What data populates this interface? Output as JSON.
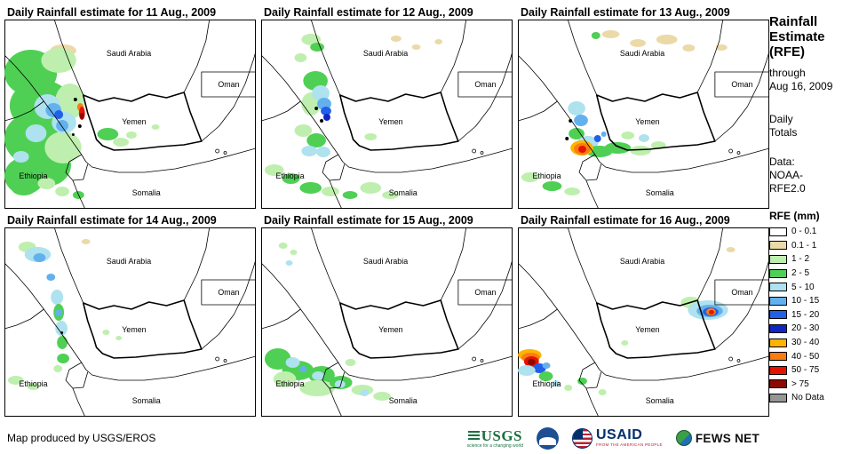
{
  "map_labels": {
    "saudi": "Saudi Arabia",
    "oman": "Oman",
    "yemen": "Yemen",
    "ethiopia": "Ethiopia",
    "somalia": "Somalia"
  },
  "palette": {
    "t": "#EBD9A8",
    "g1": "#BFEFAE",
    "g2": "#4FD054",
    "c": "#AEE2EF",
    "b1": "#63B0EF",
    "b2": "#2160E8",
    "b3": "#1026C0",
    "y": "#FFB400",
    "o": "#F97D10",
    "r": "#E51400",
    "dr": "#8C0A00",
    "k": "#000000"
  },
  "panels": [
    {
      "title": "Daily Rainfall estimate for 11 Aug., 2009",
      "blobs": [
        [
          52,
          28,
          30,
          14,
          "t"
        ],
        [
          0,
          34,
          60,
          52,
          "g2"
        ],
        [
          6,
          68,
          72,
          58,
          "g2"
        ],
        [
          0,
          105,
          62,
          58,
          "g2"
        ],
        [
          18,
          140,
          58,
          48,
          "g2"
        ],
        [
          0,
          155,
          46,
          42,
          "g2"
        ],
        [
          42,
          32,
          40,
          28,
          "g1"
        ],
        [
          58,
          72,
          34,
          40,
          "g1"
        ],
        [
          46,
          126,
          42,
          36,
          "g1"
        ],
        [
          8,
          182,
          28,
          16,
          "g2"
        ],
        [
          38,
          178,
          20,
          13,
          "g1"
        ],
        [
          58,
          188,
          16,
          11,
          "g1"
        ],
        [
          78,
          193,
          13,
          9,
          "g2"
        ],
        [
          34,
          84,
          30,
          28,
          "c"
        ],
        [
          54,
          104,
          28,
          24,
          "c"
        ],
        [
          24,
          118,
          24,
          20,
          "c"
        ],
        [
          10,
          148,
          18,
          13,
          "c"
        ],
        [
          47,
          94,
          18,
          16,
          "b1"
        ],
        [
          59,
          113,
          14,
          13,
          "b1"
        ],
        [
          57,
          102,
          10,
          10,
          "b2"
        ],
        [
          83,
          94,
          7,
          9,
          "o"
        ],
        [
          85,
          98,
          7,
          15,
          "r"
        ],
        [
          86,
          105,
          5,
          7,
          "dr"
        ],
        [
          79,
          88,
          4,
          4,
          "k"
        ],
        [
          84,
          118,
          4,
          4,
          "k"
        ],
        [
          77,
          128,
          3,
          3,
          "k"
        ],
        [
          106,
          122,
          24,
          14,
          "g2"
        ],
        [
          124,
          133,
          18,
          10,
          "g1"
        ],
        [
          139,
          126,
          12,
          8,
          "g1"
        ],
        [
          168,
          118,
          9,
          6,
          "g1"
        ]
      ]
    },
    {
      "title": "Daily Rainfall estimate for 12 Aug., 2009",
      "blobs": [
        [
          46,
          16,
          22,
          13,
          "g1"
        ],
        [
          56,
          26,
          16,
          10,
          "g2"
        ],
        [
          38,
          38,
          14,
          10,
          "g1"
        ],
        [
          148,
          18,
          12,
          7,
          "t"
        ],
        [
          172,
          28,
          10,
          6,
          "t"
        ],
        [
          198,
          22,
          9,
          6,
          "t"
        ],
        [
          48,
          58,
          28,
          22,
          "g2"
        ],
        [
          46,
          82,
          22,
          26,
          "g1"
        ],
        [
          58,
          74,
          20,
          18,
          "c"
        ],
        [
          64,
          88,
          16,
          14,
          "b1"
        ],
        [
          68,
          98,
          12,
          10,
          "b2"
        ],
        [
          71,
          106,
          8,
          8,
          "b3"
        ],
        [
          61,
          98,
          4,
          4,
          "k"
        ],
        [
          67,
          112,
          4,
          4,
          "k"
        ],
        [
          38,
          118,
          20,
          14,
          "g1"
        ],
        [
          52,
          128,
          22,
          16,
          "g2"
        ],
        [
          46,
          142,
          18,
          12,
          "c"
        ],
        [
          63,
          143,
          16,
          12,
          "c"
        ],
        [
          118,
          128,
          14,
          8,
          "g1"
        ],
        [
          4,
          163,
          22,
          13,
          "g1"
        ],
        [
          24,
          173,
          20,
          12,
          "g2"
        ],
        [
          44,
          183,
          25,
          13,
          "g2"
        ],
        [
          69,
          188,
          20,
          11,
          "g1"
        ],
        [
          93,
          193,
          17,
          9,
          "g2"
        ],
        [
          113,
          183,
          24,
          13,
          "g1"
        ],
        [
          138,
          193,
          19,
          9,
          "g1"
        ]
      ]
    },
    {
      "title": "Daily Rainfall estimate for 13 Aug., 2009",
      "blobs": [
        [
          84,
          14,
          10,
          8,
          "g2"
        ],
        [
          96,
          12,
          20,
          9,
          "t"
        ],
        [
          128,
          22,
          18,
          9,
          "t"
        ],
        [
          158,
          17,
          24,
          11,
          "t"
        ],
        [
          188,
          28,
          14,
          8,
          "t"
        ],
        [
          226,
          28,
          13,
          7,
          "t"
        ],
        [
          57,
          92,
          20,
          16,
          "c"
        ],
        [
          64,
          107,
          16,
          13,
          "b1"
        ],
        [
          58,
          122,
          18,
          13,
          "g2"
        ],
        [
          68,
          131,
          24,
          15,
          "c"
        ],
        [
          78,
          142,
          30,
          13,
          "g2"
        ],
        [
          60,
          136,
          26,
          17,
          "y"
        ],
        [
          64,
          139,
          19,
          13,
          "o"
        ],
        [
          69,
          142,
          9,
          8,
          "r"
        ],
        [
          87,
          130,
          8,
          8,
          "b2"
        ],
        [
          95,
          126,
          6,
          6,
          "b1"
        ],
        [
          99,
          138,
          30,
          13,
          "g2"
        ],
        [
          128,
          142,
          24,
          11,
          "g1"
        ],
        [
          152,
          137,
          17,
          9,
          "g1"
        ],
        [
          118,
          126,
          15,
          9,
          "g1"
        ],
        [
          138,
          129,
          12,
          9,
          "c"
        ],
        [
          4,
          172,
          20,
          11,
          "g1"
        ],
        [
          28,
          182,
          22,
          11,
          "g2"
        ],
        [
          53,
          189,
          18,
          9,
          "g1"
        ],
        [
          58,
          112,
          4,
          4,
          "k"
        ],
        [
          54,
          132,
          4,
          4,
          "k"
        ]
      ]
    },
    {
      "title": "Daily Rainfall estimate for 14 Aug., 2009",
      "blobs": [
        [
          88,
          13,
          10,
          6,
          "t"
        ],
        [
          16,
          16,
          20,
          12,
          "g1"
        ],
        [
          23,
          22,
          30,
          17,
          "c"
        ],
        [
          33,
          29,
          14,
          10,
          "b1"
        ],
        [
          48,
          52,
          10,
          8,
          "b1"
        ],
        [
          53,
          70,
          14,
          17,
          "c"
        ],
        [
          56,
          86,
          12,
          19,
          "g2"
        ],
        [
          58,
          105,
          14,
          17,
          "c"
        ],
        [
          60,
          122,
          12,
          15,
          "g2"
        ],
        [
          58,
          92,
          8,
          8,
          "b1"
        ],
        [
          64,
          117,
          3,
          3,
          "k"
        ],
        [
          60,
          142,
          14,
          11,
          "g2"
        ],
        [
          56,
          155,
          10,
          8,
          "g1"
        ],
        [
          112,
          115,
          8,
          6,
          "g1"
        ],
        [
          127,
          122,
          7,
          5,
          "g1"
        ],
        [
          4,
          167,
          18,
          10,
          "g1"
        ],
        [
          26,
          175,
          14,
          8,
          "g1"
        ]
      ]
    },
    {
      "title": "Daily Rainfall estimate for 15 Aug., 2009",
      "blobs": [
        [
          20,
          17,
          10,
          7,
          "g1"
        ],
        [
          33,
          25,
          8,
          6,
          "g1"
        ],
        [
          28,
          37,
          8,
          6,
          "c"
        ],
        [
          4,
          136,
          30,
          24,
          "g2"
        ],
        [
          24,
          150,
          36,
          22,
          "g2"
        ],
        [
          54,
          156,
          30,
          20,
          "g2"
        ],
        [
          14,
          162,
          26,
          18,
          "g1"
        ],
        [
          44,
          172,
          40,
          18,
          "g1"
        ],
        [
          78,
          167,
          26,
          15,
          "g2"
        ],
        [
          28,
          146,
          16,
          12,
          "c"
        ],
        [
          58,
          162,
          14,
          10,
          "c"
        ],
        [
          84,
          172,
          12,
          9,
          "c"
        ],
        [
          44,
          156,
          8,
          7,
          "b1"
        ],
        [
          96,
          148,
          12,
          8,
          "g1"
        ],
        [
          103,
          177,
          25,
          12,
          "g1"
        ],
        [
          128,
          185,
          20,
          10,
          "g1"
        ],
        [
          113,
          182,
          10,
          8,
          "c"
        ]
      ]
    },
    {
      "title": "Daily Rainfall estimate for 16 Aug., 2009",
      "blobs": [
        [
          238,
          22,
          10,
          6,
          "t"
        ],
        [
          186,
          78,
          22,
          13,
          "g1"
        ],
        [
          194,
          82,
          46,
          22,
          "c"
        ],
        [
          204,
          87,
          30,
          14,
          "b1"
        ],
        [
          211,
          90,
          18,
          10,
          "b2"
        ],
        [
          215,
          91,
          11,
          8,
          "o"
        ],
        [
          218,
          93,
          6,
          5,
          "r"
        ],
        [
          0,
          137,
          27,
          13,
          "y"
        ],
        [
          4,
          141,
          21,
          11,
          "o"
        ],
        [
          7,
          145,
          17,
          12,
          "r"
        ],
        [
          11,
          148,
          9,
          7,
          "dr"
        ],
        [
          17,
          153,
          15,
          11,
          "b2"
        ],
        [
          0,
          155,
          20,
          12,
          "c"
        ],
        [
          28,
          152,
          9,
          7,
          "b1"
        ],
        [
          24,
          162,
          16,
          11,
          "g2"
        ],
        [
          39,
          172,
          9,
          7,
          "c"
        ],
        [
          68,
          169,
          11,
          8,
          "g2"
        ],
        [
          53,
          177,
          9,
          7,
          "g1"
        ],
        [
          92,
          182,
          9,
          7,
          "g1"
        ],
        [
          118,
          127,
          8,
          6,
          "g1"
        ]
      ]
    }
  ],
  "sidebar": {
    "title_lines": [
      "Rainfall",
      "Estimate",
      "(RFE)"
    ],
    "through_lines": [
      "through",
      "Aug 16, 2009"
    ],
    "totals_lines": [
      "Daily",
      "Totals"
    ],
    "data_lines": [
      "Data:",
      "NOAA-",
      "RFE2.0"
    ],
    "legend_title": "RFE (mm)",
    "legend": [
      {
        "label": "0 - 0.1",
        "color": "#FFFFFF"
      },
      {
        "label": "0.1 - 1",
        "color": "#EBD9A8"
      },
      {
        "label": "1 - 2",
        "color": "#BFEFAE"
      },
      {
        "label": "2 - 5",
        "color": "#4FD054"
      },
      {
        "label": "5 - 10",
        "color": "#AEE2EF"
      },
      {
        "label": "10 - 15",
        "color": "#63B0EF"
      },
      {
        "label": "15 - 20",
        "color": "#2160E8"
      },
      {
        "label": "20 - 30",
        "color": "#1026C0"
      },
      {
        "label": "30 - 40",
        "color": "#FFB400"
      },
      {
        "label": "40 - 50",
        "color": "#F97D10"
      },
      {
        "label": "50 - 75",
        "color": "#E51400"
      },
      {
        "label": "> 75",
        "color": "#8C0A00"
      },
      {
        "label": "No Data",
        "color": "#969696"
      }
    ]
  },
  "footer": {
    "credit": "Map produced by USGS/EROS",
    "logos": [
      {
        "name": "usgs",
        "text": "USGS",
        "tagline": "science for a changing world"
      },
      {
        "name": "noaa"
      },
      {
        "name": "usaid",
        "text": "USAID",
        "tagline": "FROM THE AMERICAN PEOPLE"
      },
      {
        "name": "fewsnet",
        "text": "FEWS NET"
      }
    ]
  }
}
